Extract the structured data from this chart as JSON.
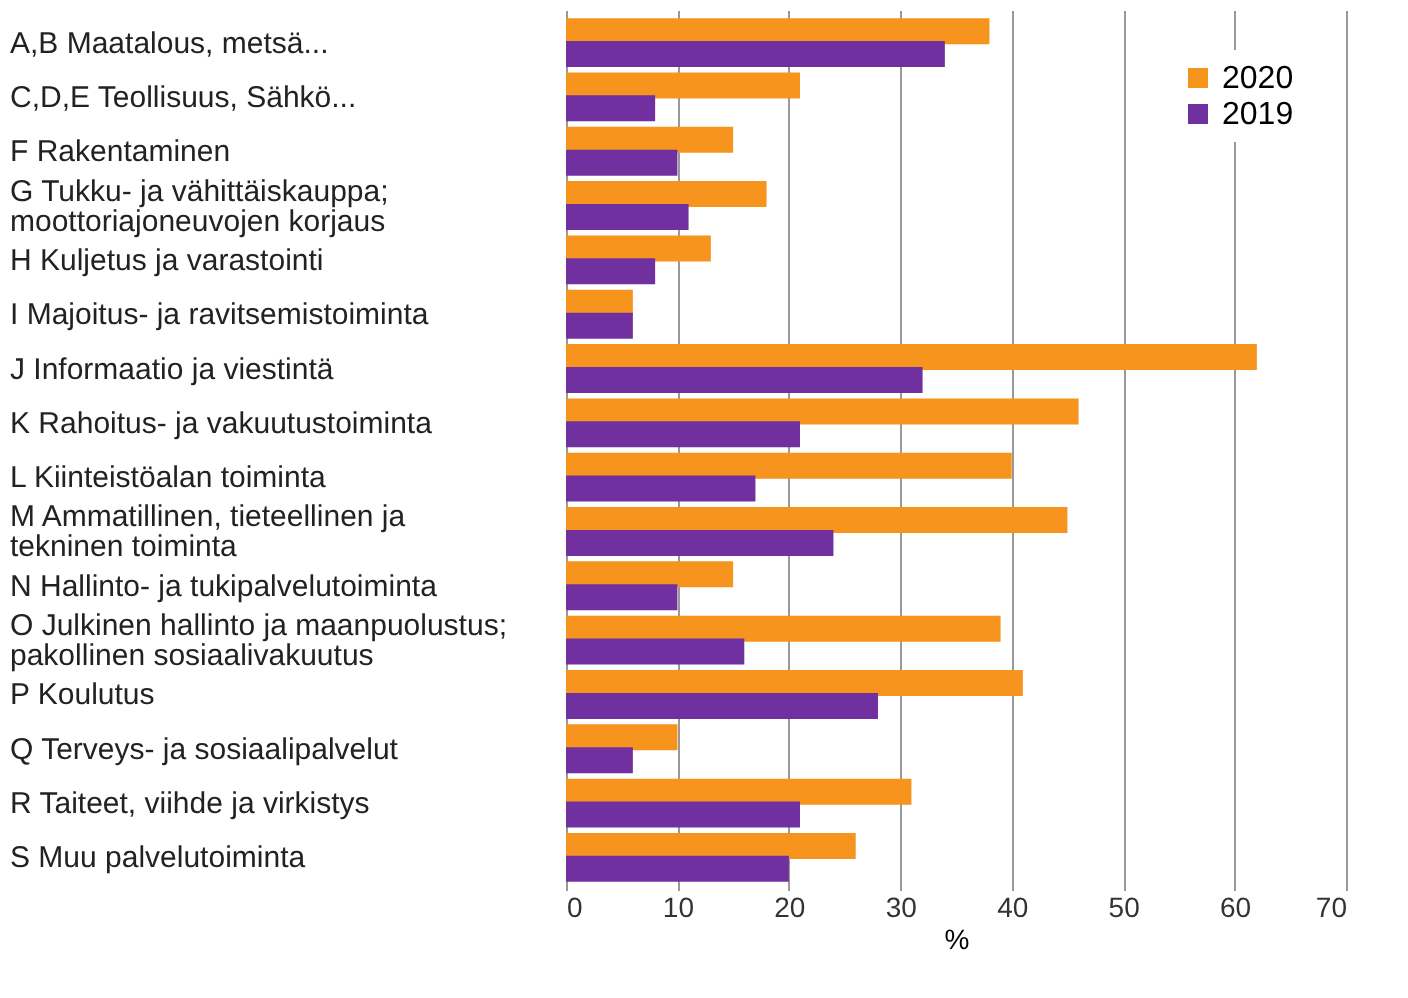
{
  "chart_data": {
    "type": "bar",
    "orientation": "horizontal",
    "xlabel": "%",
    "categories": [
      "A,B Maatalous, metsä...",
      "C,D,E Teollisuus, Sähkö...",
      "F Rakentaminen",
      "G Tukku- ja vähittäiskauppa;\nmoottoriajoneuvojen korjaus",
      "H Kuljetus ja varastointi",
      "I Majoitus- ja ravitsemistoiminta",
      "J Informaatio ja viestintä",
      "K Rahoitus- ja vakuutustoiminta",
      "L Kiinteistöalan toiminta",
      "M Ammatillinen, tieteellinen ja\ntekninen toiminta",
      "N Hallinto- ja tukipalvelutoiminta",
      "O Julkinen hallinto ja maanpuolustus;\npakollinen sosiaalivakuutus",
      "P Koulutus",
      "Q Terveys- ja sosiaalipalvelut",
      "R Taiteet, viihde ja virkistys",
      "S Muu palvelutoiminta"
    ],
    "series": [
      {
        "name": "2020",
        "color": "#f7941d",
        "values": [
          38,
          21,
          15,
          18,
          13,
          6,
          62,
          46,
          40,
          45,
          15,
          39,
          41,
          10,
          31,
          26
        ]
      },
      {
        "name": "2019",
        "color": "#7030a0",
        "values": [
          34,
          8,
          10,
          11,
          8,
          6,
          32,
          21,
          17,
          24,
          10,
          16,
          28,
          6,
          21,
          20
        ]
      }
    ],
    "xlim": [
      0,
      70
    ],
    "xticks": [
      0,
      10,
      20,
      30,
      40,
      50,
      60,
      70
    ],
    "grid": "x",
    "legend": "top right"
  }
}
